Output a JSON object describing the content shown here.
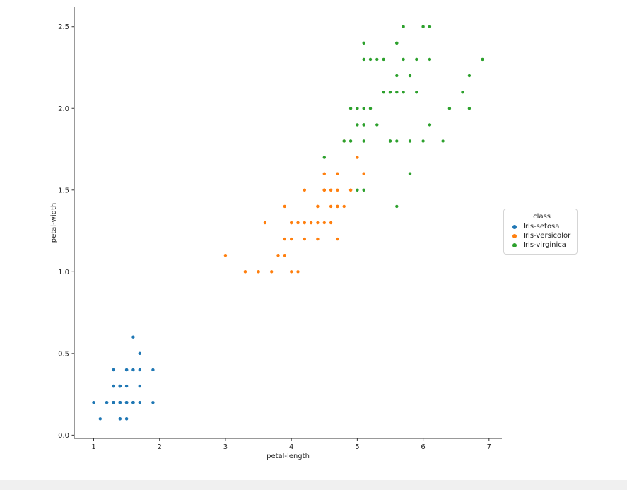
{
  "chart_data": {
    "type": "scatter",
    "title": "",
    "xlabel": "petal-length",
    "ylabel": "petal-width",
    "xlim": [
      0.705,
      7.195
    ],
    "ylim": [
      -0.02,
      2.62
    ],
    "xticks": [
      1,
      2,
      3,
      4,
      5,
      6,
      7
    ],
    "xtick_labels": [
      "1",
      "2",
      "3",
      "4",
      "5",
      "6",
      "7"
    ],
    "yticks": [
      0.0,
      0.5,
      1.0,
      1.5,
      2.0,
      2.5
    ],
    "ytick_labels": [
      "0.0",
      "0.5",
      "1.0",
      "1.5",
      "2.0",
      "2.5"
    ],
    "grid": false,
    "legend_title": "class",
    "legend_position": "right-outside",
    "series": [
      {
        "name": "Iris-setosa",
        "color": "#1f77b4",
        "points": [
          [
            1.4,
            0.2
          ],
          [
            1.4,
            0.2
          ],
          [
            1.3,
            0.2
          ],
          [
            1.5,
            0.2
          ],
          [
            1.4,
            0.2
          ],
          [
            1.7,
            0.4
          ],
          [
            1.4,
            0.3
          ],
          [
            1.5,
            0.2
          ],
          [
            1.4,
            0.2
          ],
          [
            1.5,
            0.1
          ],
          [
            1.5,
            0.2
          ],
          [
            1.6,
            0.2
          ],
          [
            1.4,
            0.1
          ],
          [
            1.1,
            0.1
          ],
          [
            1.2,
            0.2
          ],
          [
            1.5,
            0.4
          ],
          [
            1.3,
            0.4
          ],
          [
            1.4,
            0.3
          ],
          [
            1.7,
            0.3
          ],
          [
            1.5,
            0.3
          ],
          [
            1.7,
            0.2
          ],
          [
            1.5,
            0.4
          ],
          [
            1.0,
            0.2
          ],
          [
            1.7,
            0.5
          ],
          [
            1.9,
            0.2
          ],
          [
            1.6,
            0.2
          ],
          [
            1.6,
            0.4
          ],
          [
            1.5,
            0.2
          ],
          [
            1.4,
            0.2
          ],
          [
            1.6,
            0.2
          ],
          [
            1.6,
            0.2
          ],
          [
            1.5,
            0.4
          ],
          [
            1.5,
            0.1
          ],
          [
            1.4,
            0.2
          ],
          [
            1.5,
            0.2
          ],
          [
            1.2,
            0.2
          ],
          [
            1.3,
            0.2
          ],
          [
            1.4,
            0.1
          ],
          [
            1.3,
            0.2
          ],
          [
            1.5,
            0.2
          ],
          [
            1.3,
            0.3
          ],
          [
            1.3,
            0.3
          ],
          [
            1.3,
            0.2
          ],
          [
            1.6,
            0.6
          ],
          [
            1.9,
            0.4
          ],
          [
            1.4,
            0.3
          ],
          [
            1.6,
            0.2
          ],
          [
            1.4,
            0.2
          ],
          [
            1.5,
            0.2
          ],
          [
            1.4,
            0.2
          ]
        ]
      },
      {
        "name": "Iris-versicolor",
        "color": "#ff7f0e",
        "points": [
          [
            4.7,
            1.4
          ],
          [
            4.5,
            1.5
          ],
          [
            4.9,
            1.5
          ],
          [
            4.0,
            1.3
          ],
          [
            4.6,
            1.5
          ],
          [
            4.5,
            1.3
          ],
          [
            4.7,
            1.6
          ],
          [
            3.3,
            1.0
          ],
          [
            4.6,
            1.3
          ],
          [
            3.9,
            1.4
          ],
          [
            3.5,
            1.0
          ],
          [
            4.2,
            1.5
          ],
          [
            4.0,
            1.0
          ],
          [
            4.7,
            1.4
          ],
          [
            3.6,
            1.3
          ],
          [
            4.4,
            1.4
          ],
          [
            4.5,
            1.5
          ],
          [
            4.1,
            1.0
          ],
          [
            4.5,
            1.5
          ],
          [
            3.9,
            1.1
          ],
          [
            4.8,
            1.8
          ],
          [
            4.0,
            1.3
          ],
          [
            4.9,
            1.5
          ],
          [
            4.7,
            1.2
          ],
          [
            4.3,
            1.3
          ],
          [
            4.4,
            1.4
          ],
          [
            4.8,
            1.4
          ],
          [
            5.0,
            1.7
          ],
          [
            4.5,
            1.5
          ],
          [
            3.5,
            1.0
          ],
          [
            3.8,
            1.1
          ],
          [
            3.7,
            1.0
          ],
          [
            3.9,
            1.2
          ],
          [
            5.1,
            1.6
          ],
          [
            4.5,
            1.5
          ],
          [
            4.5,
            1.6
          ],
          [
            4.7,
            1.5
          ],
          [
            4.4,
            1.3
          ],
          [
            4.1,
            1.3
          ],
          [
            4.0,
            1.3
          ],
          [
            4.4,
            1.2
          ],
          [
            4.6,
            1.4
          ],
          [
            4.0,
            1.2
          ],
          [
            3.3,
            1.0
          ],
          [
            4.2,
            1.3
          ],
          [
            4.2,
            1.2
          ],
          [
            4.2,
            1.3
          ],
          [
            4.3,
            1.3
          ],
          [
            3.0,
            1.1
          ],
          [
            4.1,
            1.3
          ]
        ]
      },
      {
        "name": "Iris-virginica",
        "color": "#2ca02c",
        "points": [
          [
            6.0,
            2.5
          ],
          [
            5.1,
            1.9
          ],
          [
            5.9,
            2.1
          ],
          [
            5.6,
            1.8
          ],
          [
            5.8,
            2.2
          ],
          [
            6.6,
            2.1
          ],
          [
            4.5,
            1.7
          ],
          [
            6.3,
            1.8
          ],
          [
            5.8,
            1.8
          ],
          [
            6.1,
            2.5
          ],
          [
            5.1,
            2.0
          ],
          [
            5.3,
            1.9
          ],
          [
            5.5,
            2.1
          ],
          [
            5.0,
            2.0
          ],
          [
            5.1,
            2.4
          ],
          [
            5.3,
            2.3
          ],
          [
            5.5,
            1.8
          ],
          [
            6.7,
            2.2
          ],
          [
            6.9,
            2.3
          ],
          [
            5.0,
            1.5
          ],
          [
            5.7,
            2.3
          ],
          [
            4.9,
            2.0
          ],
          [
            6.7,
            2.0
          ],
          [
            4.9,
            1.8
          ],
          [
            5.7,
            2.1
          ],
          [
            6.0,
            1.8
          ],
          [
            4.8,
            1.8
          ],
          [
            4.9,
            1.8
          ],
          [
            5.6,
            2.1
          ],
          [
            5.8,
            1.6
          ],
          [
            6.1,
            1.9
          ],
          [
            6.4,
            2.0
          ],
          [
            5.6,
            2.2
          ],
          [
            5.1,
            1.5
          ],
          [
            5.6,
            1.4
          ],
          [
            6.1,
            2.3
          ],
          [
            5.6,
            2.4
          ],
          [
            5.5,
            1.8
          ],
          [
            4.8,
            1.8
          ],
          [
            5.4,
            2.1
          ],
          [
            5.6,
            2.4
          ],
          [
            5.1,
            2.3
          ],
          [
            5.1,
            1.9
          ],
          [
            5.9,
            2.3
          ],
          [
            5.7,
            2.5
          ],
          [
            5.2,
            2.3
          ],
          [
            5.0,
            1.9
          ],
          [
            5.2,
            2.0
          ],
          [
            5.4,
            2.3
          ],
          [
            5.1,
            1.8
          ]
        ]
      }
    ]
  }
}
